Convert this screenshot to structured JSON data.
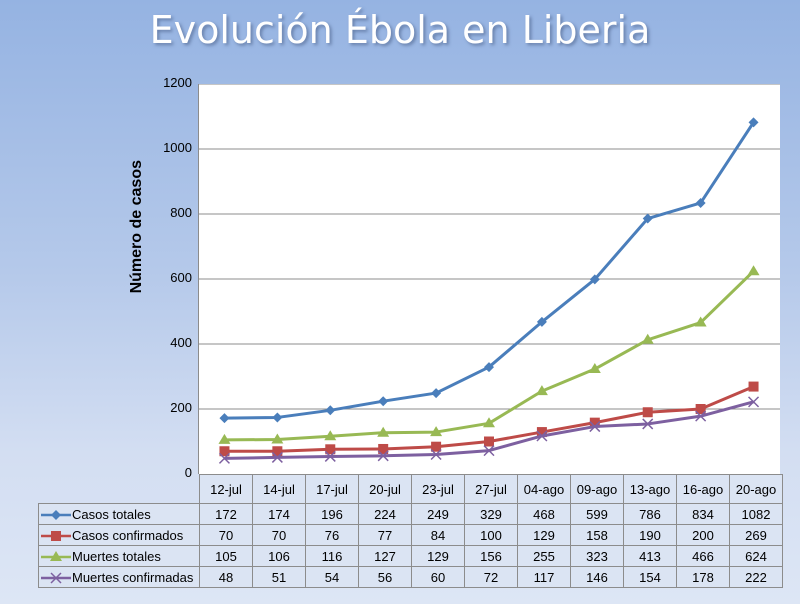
{
  "chart_data": {
    "type": "line",
    "title": "Evolución Ébola en Liberia",
    "xlabel": "",
    "ylabel": "Número de casos",
    "ylim": [
      0,
      1200
    ],
    "yticks": [
      "0",
      "200",
      "400",
      "600",
      "800",
      "1000",
      "1200"
    ],
    "grid": true,
    "legend_placement": "data-table-below",
    "categories": [
      "12-jul",
      "14-jul",
      "17-jul",
      "20-jul",
      "23-jul",
      "27-jul",
      "04-ago",
      "09-ago",
      "13-ago",
      "16-ago",
      "20-ago"
    ],
    "series": [
      {
        "name": "Casos totales",
        "color": "#4a7ebb",
        "marker": "diamond",
        "values": [
          172,
          174,
          196,
          224,
          249,
          329,
          468,
          599,
          786,
          834,
          1082
        ]
      },
      {
        "name": "Casos confirmados",
        "color": "#be4b48",
        "marker": "square",
        "values": [
          70,
          70,
          76,
          77,
          84,
          100,
          129,
          158,
          190,
          200,
          269
        ]
      },
      {
        "name": "Muertes totales",
        "color": "#98b954",
        "marker": "triangle",
        "values": [
          105,
          106,
          116,
          127,
          129,
          156,
          255,
          323,
          413,
          466,
          624
        ]
      },
      {
        "name": "Muertes confirmadas",
        "color": "#7d60a0",
        "marker": "x",
        "values": [
          48,
          51,
          54,
          56,
          60,
          72,
          117,
          146,
          154,
          178,
          222
        ]
      }
    ]
  }
}
